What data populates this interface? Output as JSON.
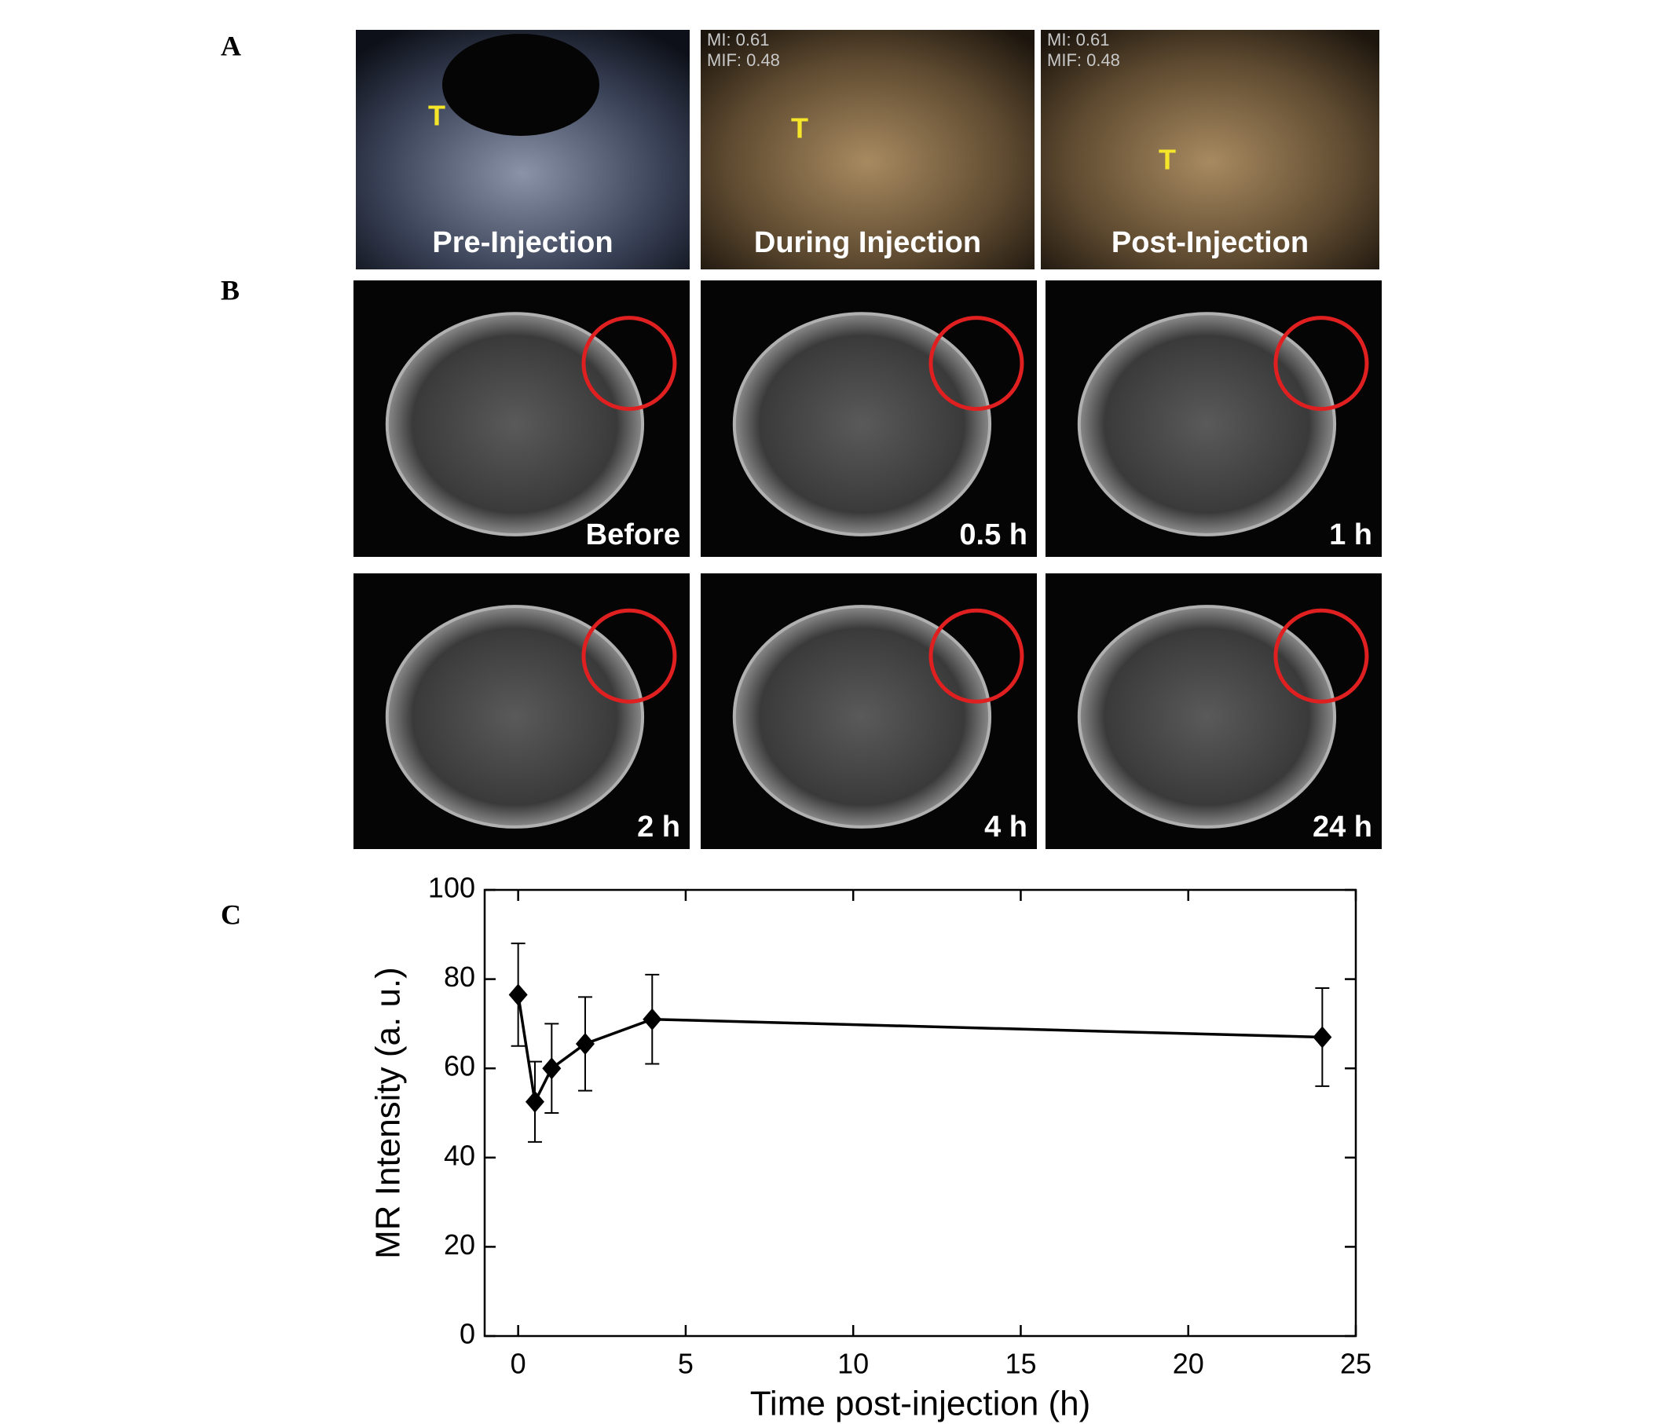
{
  "panel_labels": [
    "A",
    "B",
    "C"
  ],
  "ultrasound": [
    {
      "caption": "Pre-Injection",
      "marker": "T"
    },
    {
      "caption": "During Injection",
      "marker": "T",
      "readouts": [
        "MI: 0.61",
        "MIF: 0.48"
      ]
    },
    {
      "caption": "Post-Injection",
      "marker": "T",
      "readouts": [
        "MI: 0.61",
        "MIF: 0.48"
      ]
    }
  ],
  "mri": [
    "Before",
    "0.5 h",
    "1 h",
    "2 h",
    "4 h",
    "24 h"
  ],
  "chart_data": {
    "type": "line",
    "xlabel": "Time post-injection (h)",
    "ylabel": "MR Intensity (a. u.)",
    "x": [
      0,
      0.5,
      1,
      2,
      4,
      24
    ],
    "series": [
      {
        "color": "#000000",
        "values": [
          76.5,
          52.5,
          60,
          65.5,
          71,
          67
        ],
        "errors": [
          11.5,
          9,
          10,
          10.5,
          10,
          11
        ]
      }
    ],
    "xlim": [
      -1,
      25
    ],
    "ylim": [
      0,
      100
    ],
    "xticks": [
      0,
      5,
      10,
      15,
      20,
      25
    ],
    "yticks": [
      0,
      20,
      40,
      60,
      80,
      100
    ],
    "grid": false
  }
}
